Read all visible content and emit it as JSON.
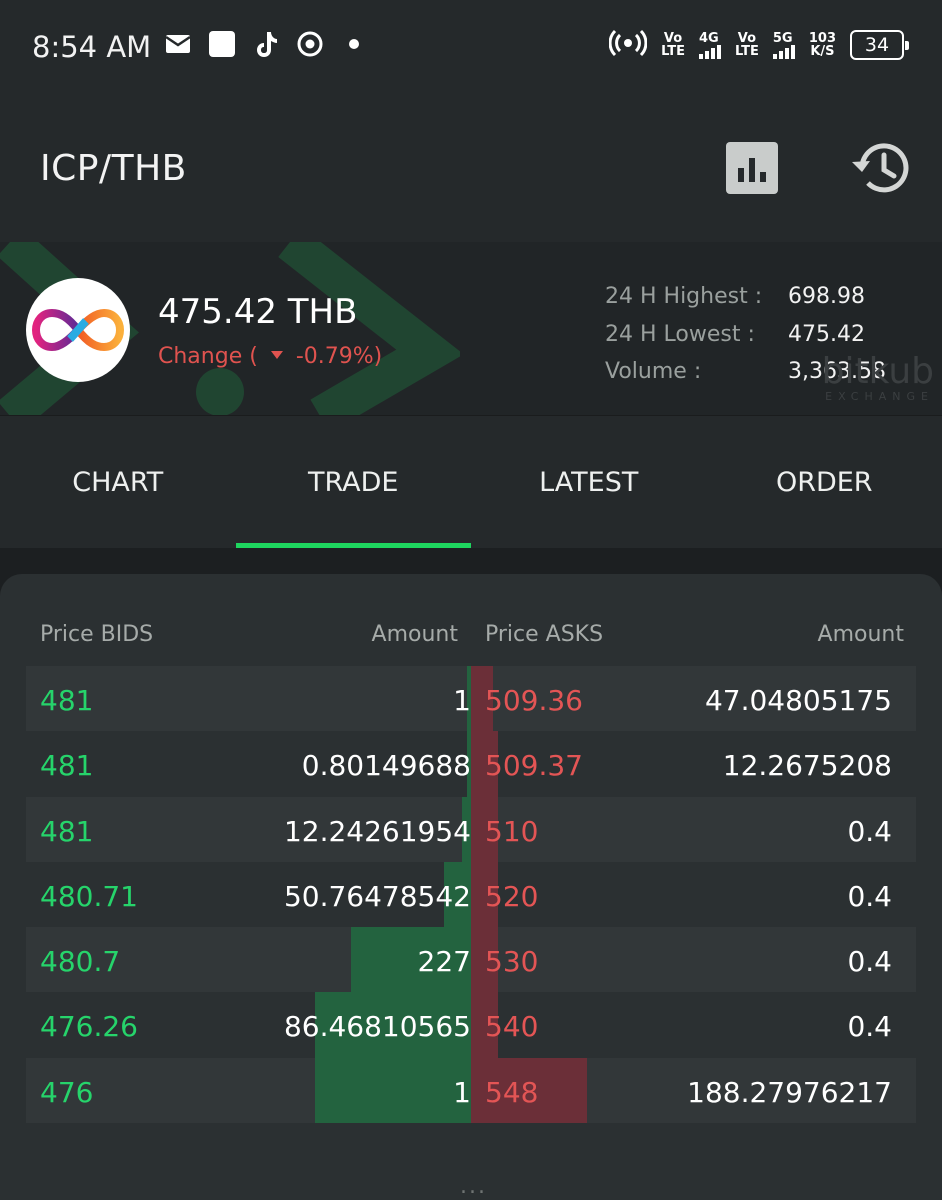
{
  "status_bar": {
    "time": "8:54 AM",
    "net_speed": "103",
    "net_speed_unit": "K/S",
    "battery": "34",
    "sim1_label_top": "Vo",
    "sim1_label_bottom": "LTE",
    "sim1_net": "4G",
    "sim2_label_top": "Vo",
    "sim2_label_bottom": "LTE",
    "sim2_net": "5G",
    "icons": [
      "mail-icon",
      "app-square-icon",
      "tiktok-icon",
      "chrome-icon",
      "dot-icon",
      "hotspot-icon",
      "signal-icon",
      "battery-icon"
    ]
  },
  "header": {
    "title": "ICP/THB",
    "chart_button_icon": "bar-chart-icon",
    "history_button_icon": "history-icon"
  },
  "ticker": {
    "price": "475.42 THB",
    "change_label": "Change (",
    "change_value": "-0.79%)",
    "change_color": "#e0534f",
    "highest_label": "24 H Highest :",
    "highest_value": "698.98",
    "lowest_label": "24 H Lowest :",
    "lowest_value": "475.42",
    "volume_label": "Volume :",
    "volume_value": "3,363.58",
    "watermark_main": "bitkub",
    "watermark_sub": "EXCHANGE"
  },
  "tabs": [
    {
      "label": "CHART",
      "active": false
    },
    {
      "label": "TRADE",
      "active": true
    },
    {
      "label": "LATEST",
      "active": false
    },
    {
      "label": "ORDER",
      "active": false
    }
  ],
  "orderbook": {
    "headers": {
      "bid_price": "Price BIDS",
      "bid_amount": "Amount",
      "ask_price": "Price ASKS",
      "ask_amount": "Amount"
    },
    "rows": [
      {
        "bid_price": "481",
        "bid_amount": "1",
        "ask_price": "509.36",
        "ask_amount": "47.04805175",
        "bid_depth": 0.01,
        "ask_depth": 0.05
      },
      {
        "bid_price": "481",
        "bid_amount": "0.80149688",
        "ask_price": "509.37",
        "ask_amount": "12.2675208",
        "bid_depth": 0.01,
        "ask_depth": 0.06
      },
      {
        "bid_price": "481",
        "bid_amount": "12.24261954",
        "ask_price": "510",
        "ask_amount": "0.4",
        "bid_depth": 0.02,
        "ask_depth": 0.06
      },
      {
        "bid_price": "480.71",
        "bid_amount": "50.76478542",
        "ask_price": "520",
        "ask_amount": "0.4",
        "bid_depth": 0.06,
        "ask_depth": 0.06
      },
      {
        "bid_price": "480.7",
        "bid_amount": "227",
        "ask_price": "530",
        "ask_amount": "0.4",
        "bid_depth": 0.27,
        "ask_depth": 0.06
      },
      {
        "bid_price": "476.26",
        "bid_amount": "86.46810565",
        "ask_price": "540",
        "ask_amount": "0.4",
        "bid_depth": 0.35,
        "ask_depth": 0.06
      },
      {
        "bid_price": "476",
        "bid_amount": "1",
        "ask_price": "548",
        "ask_amount": "188.27976217",
        "bid_depth": 0.35,
        "ask_depth": 0.26
      }
    ]
  },
  "footer": {
    "more_indicator": "..."
  },
  "colors": {
    "bid": "#26d46b",
    "ask": "#e35555",
    "accent": "#1ed65f",
    "background": "#1c1f21"
  }
}
